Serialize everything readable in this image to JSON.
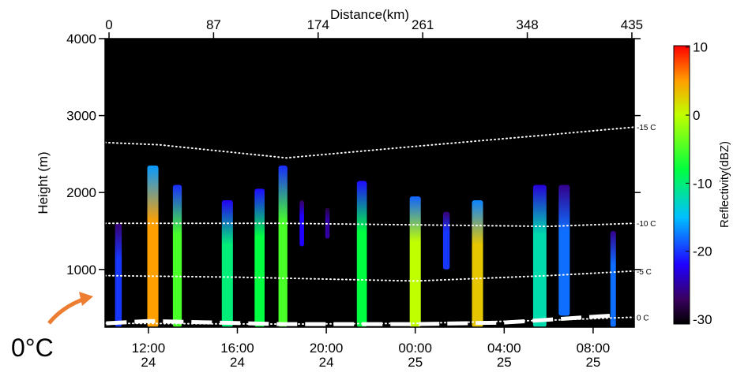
{
  "chart_data": {
    "type": "time-height",
    "x_label": "Distance(km)",
    "y_label": "Height (m)",
    "colorbar_label": "Reflectivity(dBZ)",
    "annotation": "0°C",
    "xlim": [
      10.05,
      33.85
    ],
    "xticks": [
      {
        "value": 12,
        "label": "12:00",
        "day": "24"
      },
      {
        "value": 16,
        "label": "16:00",
        "day": "24"
      },
      {
        "value": 20,
        "label": "20:00",
        "day": "24"
      },
      {
        "value": 24,
        "label": "00:00",
        "day": "25"
      },
      {
        "value": 28,
        "label": "04:00",
        "day": "25"
      },
      {
        "value": 32,
        "label": "08:00",
        "day": "25"
      }
    ],
    "x2lim": [
      -3.3,
      437
    ],
    "x2ticks": [
      0,
      87,
      174,
      261,
      348,
      435
    ],
    "ylim": [
      250,
      4000
    ],
    "yticks": [
      1000,
      2000,
      3000,
      4000
    ],
    "clim": [
      -30.7,
      10.2
    ],
    "cticks": [
      -30,
      -20,
      -10,
      0,
      10
    ],
    "colormap": [
      [
        -30.7,
        "#000000"
      ],
      [
        -27,
        "#3a0060"
      ],
      [
        -22,
        "#2000ff"
      ],
      [
        -15,
        "#00c0ff"
      ],
      [
        -8,
        "#00ff40"
      ],
      [
        0,
        "#c0ff00"
      ],
      [
        5,
        "#ffa000"
      ],
      [
        10.2,
        "#ff0000"
      ]
    ],
    "echoes": {
      "x": [
        10.65,
        12.2,
        13.3,
        15.55,
        17.0,
        18.05,
        18.9,
        20.05,
        21.6,
        24.0,
        25.4,
        26.8,
        29.6,
        30.7,
        32.9
      ],
      "width": [
        0.3,
        0.5,
        0.4,
        0.5,
        0.45,
        0.4,
        0.2,
        0.2,
        0.45,
        0.5,
        0.3,
        0.5,
        0.6,
        0.5,
        0.25
      ],
      "top": [
        1600,
        2350,
        2100,
        1900,
        2050,
        2350,
        1900,
        1800,
        2150,
        1950,
        1750,
        1900,
        2100,
        2100,
        1500
      ],
      "base": [
        250,
        250,
        250,
        250,
        250,
        250,
        1300,
        1400,
        250,
        250,
        1000,
        250,
        250,
        400,
        250
      ],
      "dbz": [
        -20,
        5,
        -5,
        -10,
        -8,
        -5,
        -22,
        -25,
        -8,
        0,
        -20,
        3,
        -12,
        -18,
        -18
      ]
    },
    "isotherms": [
      {
        "name": "-15 C",
        "color": "#ffffff",
        "x": [
          10.05,
          12.5,
          18.2,
          24,
          30,
          33.85
        ],
        "values": [
          2650,
          2620,
          2450,
          2600,
          2750,
          2850
        ]
      },
      {
        "name": "-10 C",
        "color": "#ffffff",
        "x": [
          10.05,
          18,
          24,
          30,
          33.85
        ],
        "values": [
          1600,
          1600,
          1580,
          1560,
          1600
        ]
      },
      {
        "name": "-5 C",
        "color": "#ffffff",
        "x": [
          10.05,
          16,
          24,
          30,
          33.85
        ],
        "values": [
          920,
          900,
          850,
          920,
          980
        ]
      },
      {
        "name": "0 C",
        "color": "#ffffff",
        "x": [
          10.05,
          18,
          24,
          30,
          33.85
        ],
        "values": [
          300,
          290,
          300,
          340,
          380
        ]
      }
    ],
    "freezing_line": {
      "color": "#ffffff",
      "x": [
        10.1,
        12,
        18,
        24,
        28,
        32.8
      ],
      "values": [
        300,
        330,
        290,
        290,
        310,
        400
      ]
    }
  }
}
